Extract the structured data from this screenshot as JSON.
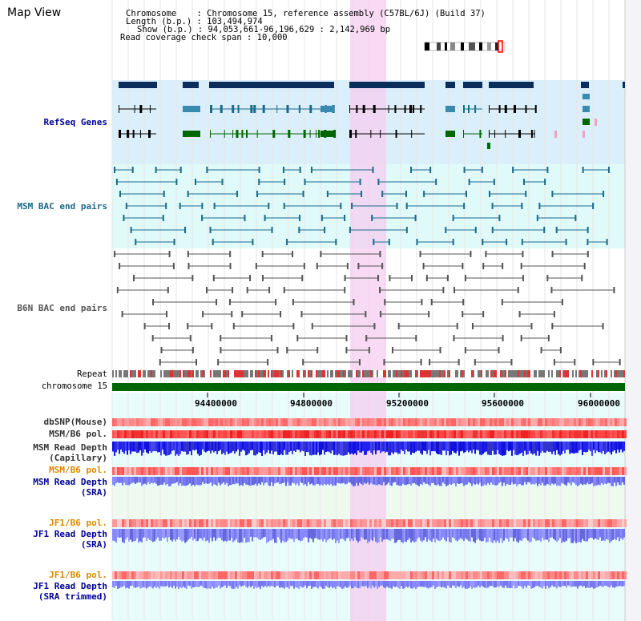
{
  "title": "Map View",
  "info": {
    "chromosome_key": "Chromosome",
    "chromosome_val": ": Chromosome 15, reference assembly (C57BL/6J) (Build 37)",
    "length_key": "Length (b.p.)",
    "length_val": ": 103,494,974",
    "show_key": "Show (b.p.)",
    "show_val": ": 94,053,661-96,196,629 : 2,142,969 bp",
    "coverage_line": "Read coverage check span : 10,000"
  },
  "tracks": {
    "refseq": "RefSeq Genes",
    "msm_bac": "MSM BAC end pairs",
    "b6n_bac": "B6N BAC end pairs",
    "repeat": "Repeat",
    "chromosome": "chromosome 15",
    "dbsnp": "dbSNP(Mouse)",
    "msm_b6_pol": "MSM/B6 pol.",
    "msm_depth_cap_1": "MSM Read Depth",
    "msm_depth_cap_2": "(Capillary)",
    "msm_b6_pol_2": "MSM/B6 pol.",
    "msm_depth_sra_1": "MSM Read Depth",
    "msm_depth_sra_2": "(SRA)",
    "jf1_b6_pol": "JF1/B6 pol.",
    "jf1_depth_sra_1": "JF1 Read Depth",
    "jf1_depth_sra_2": "(SRA)",
    "jf1_b6_pol_2": "JF1/B6 pol.",
    "jf1_depth_trim_1": "JF1 Read Depth",
    "jf1_depth_trim_2": "(SRA trimmed)"
  },
  "ruler": {
    "ticks": [
      "94400000",
      "94800000",
      "95200000",
      "95600000",
      "96000000"
    ]
  },
  "colors": {
    "refseq_bg": "#dbeffa",
    "msm_bg": "#e0fafa",
    "highlight": "#f6cdf0",
    "gene_dark": "#0b2d5c",
    "gene_mid": "#3a8ab0",
    "gene_green": "#006600",
    "msm_line": "#1a6a8a",
    "b6n_line": "#555555",
    "chrom_green": "#006600",
    "label_blue": "#000099",
    "label_orange": "#dd8800",
    "label_dark": "#333333"
  }
}
